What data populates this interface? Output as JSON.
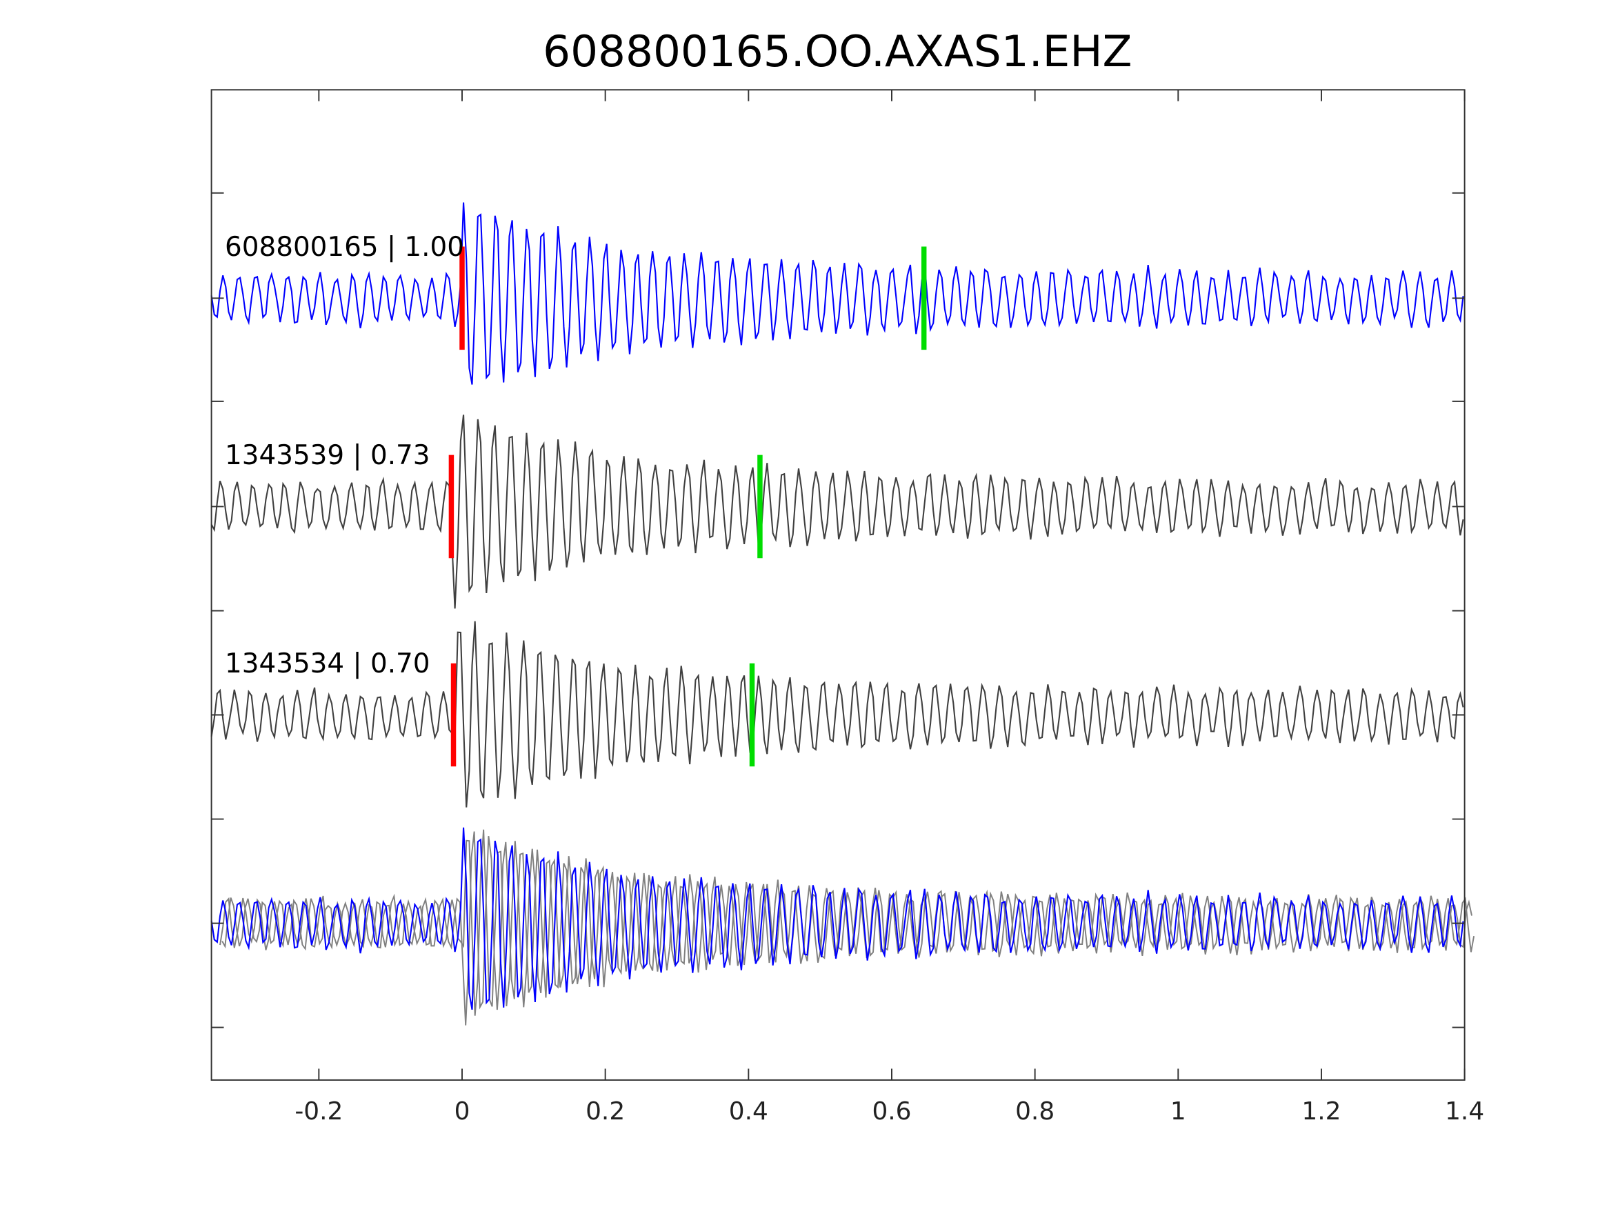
{
  "chart_data": {
    "type": "line",
    "title": "608800165.OO.AXAS1.EHZ",
    "xlabel": "",
    "ylabel": "",
    "xlim": [
      -0.35,
      1.4
    ],
    "xticks": [
      "-0.2",
      "0",
      "0.2",
      "0.4",
      "0.6",
      "0.8",
      "1",
      "1.2",
      "1.4"
    ],
    "xtick_values": [
      -0.2,
      0,
      0.2,
      0.4,
      0.6,
      0.8,
      1,
      1.2,
      1.4
    ],
    "grid": false,
    "colors": {
      "template": "#0000ff",
      "neighbor": "#404040",
      "stack": "#808080",
      "p_pick": "#ff0000",
      "s_pick": "#00dd00",
      "axis": "#333333"
    },
    "traces": [
      {
        "label": "608800165 | 1.00",
        "id": "608800165",
        "cc": 1.0,
        "p_pick": 0.0,
        "s_pick": 0.645,
        "color": "template",
        "seed": 3
      },
      {
        "label": "1343539 | 0.73",
        "id": "1343539",
        "cc": 0.73,
        "p_pick": -0.015,
        "s_pick": 0.416,
        "color": "neighbor",
        "seed": 7
      },
      {
        "label": "1343534 | 0.70",
        "id": "1343534",
        "cc": 0.7,
        "p_pick": -0.012,
        "s_pick": 0.405,
        "color": "neighbor",
        "seed": 11
      }
    ],
    "overlay": {
      "description_free": true
    }
  }
}
